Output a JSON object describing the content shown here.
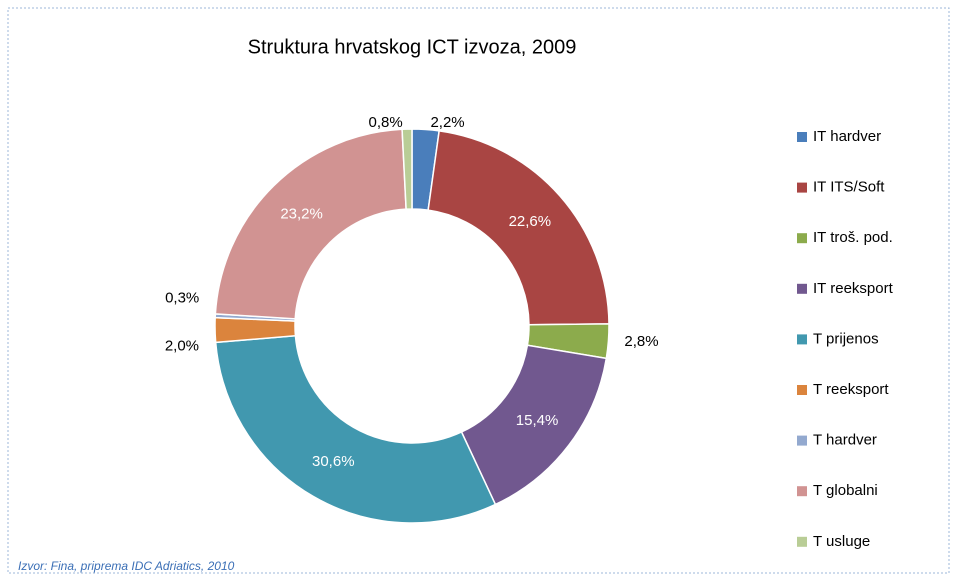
{
  "chart_data": {
    "type": "donut",
    "title": "Struktura hrvatskog ICT izvoza, 2009",
    "categories": [
      "IT hardver",
      "IT ITS/Soft",
      "IT troš. pod.",
      "IT reeksport",
      "T prijenos",
      "T reeksport",
      "T hardver",
      "T globalni",
      "T usluge"
    ],
    "values": [
      2.2,
      22.6,
      2.8,
      15.4,
      30.6,
      2.0,
      0.3,
      23.2,
      0.8
    ],
    "value_labels": [
      "2,2%",
      "22,6%",
      "2,8%",
      "15,4%",
      "30,6%",
      "2,0%",
      "0,3%",
      "23,2%",
      "0,8%"
    ],
    "colors": [
      "#4a7ebb",
      "#a94543",
      "#8cab4c",
      "#71588f",
      "#4198af",
      "#db843d",
      "#93a9cf",
      "#d19392",
      "#b9cd96"
    ],
    "legend": "right",
    "source": "Izvor: Fina, priprema IDC Adriatics, 2010"
  }
}
